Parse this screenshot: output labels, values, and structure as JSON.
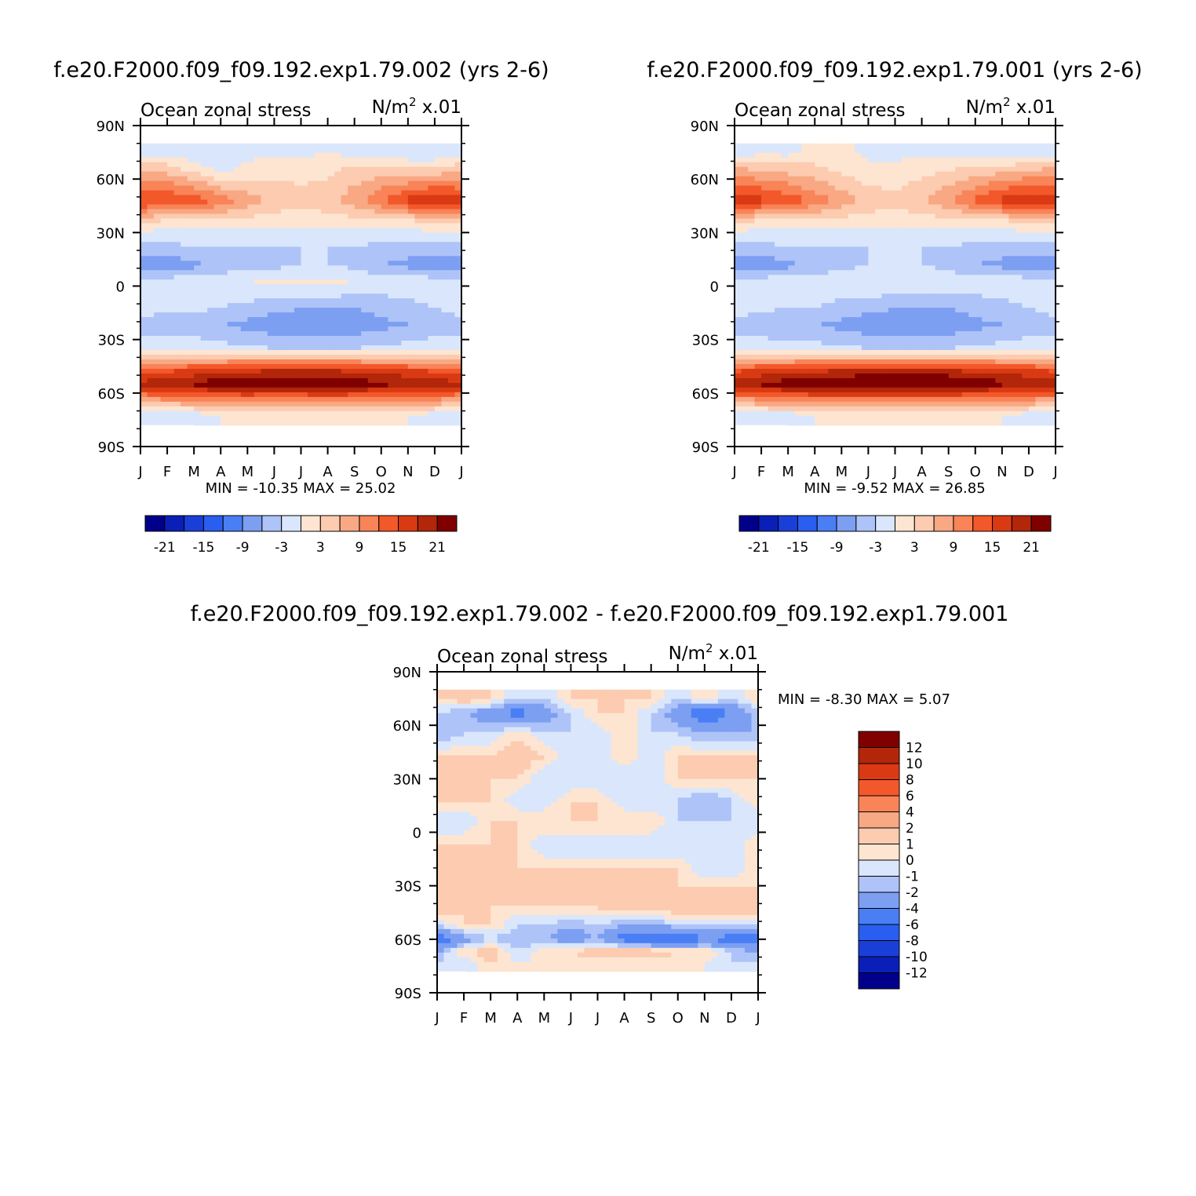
{
  "units_label": "N/m",
  "units_exponent": "2",
  "units_scale": "x.01",
  "variable": "Ocean zonal stress",
  "chart_data": [
    {
      "type": "heatmap",
      "id": "case2",
      "title": "f.e20.F2000.f09_f09.192.exp1.79.002 (yrs 2-6)",
      "subtitle": "Ocean zonal stress",
      "x": [
        "J",
        "F",
        "M",
        "A",
        "M",
        "J",
        "J",
        "A",
        "S",
        "O",
        "N",
        "D",
        "J"
      ],
      "y": [
        "90N",
        "60N",
        "30N",
        "0",
        "30S",
        "60S",
        "90S"
      ],
      "stats": {
        "min_label": "MIN =",
        "min": "-10.35",
        "max_label": "MAX =",
        "max": "25.02"
      },
      "colorbar_labels": [
        "-21",
        "-15",
        "-9",
        "-3",
        "3",
        "9",
        "15",
        "21"
      ],
      "rows": [
        {
          "lat": 75,
          "values": [
            -2,
            -1,
            -3,
            -1,
            -1,
            -1,
            -1,
            0,
            -1,
            -1,
            -3,
            -3,
            -2
          ]
        },
        {
          "lat": 65,
          "values": [
            6,
            5,
            2,
            -1,
            1,
            2,
            2,
            2,
            4,
            4,
            4,
            4,
            6
          ]
        },
        {
          "lat": 48,
          "values": [
            16,
            15,
            14,
            11,
            8,
            5,
            4,
            5,
            8,
            12,
            16,
            18,
            16
          ]
        },
        {
          "lat": 35,
          "values": [
            2,
            1,
            1,
            1,
            1,
            1,
            1,
            1,
            1,
            1,
            1,
            2,
            2
          ]
        },
        {
          "lat": 22,
          "values": [
            -4,
            -4,
            -3,
            -3,
            -3,
            -3,
            -3,
            -3,
            -3,
            -4,
            -4,
            -4,
            -4
          ]
        },
        {
          "lat": 12,
          "values": [
            -9,
            -8,
            -7,
            -5,
            -4,
            -4,
            -3,
            -3,
            -4,
            -6,
            -7,
            -8,
            -9
          ]
        },
        {
          "lat": 2,
          "values": [
            -1,
            -1,
            -1,
            -1,
            0,
            1,
            1,
            1,
            0,
            -1,
            -1,
            -1,
            -1
          ]
        },
        {
          "lat": -12,
          "values": [
            -2,
            -2,
            -2,
            -3,
            -4,
            -5,
            -6,
            -6,
            -6,
            -5,
            -4,
            -3,
            -2
          ]
        },
        {
          "lat": -22,
          "values": [
            -4,
            -5,
            -5,
            -6,
            -7,
            -8,
            -8,
            -8,
            -8,
            -7,
            -6,
            -5,
            -4
          ]
        },
        {
          "lat": -35,
          "values": [
            -1,
            -1,
            -1,
            -2,
            -2,
            -3,
            -3,
            -3,
            -3,
            -2,
            -2,
            -1,
            -1
          ]
        },
        {
          "lat": -48,
          "values": [
            14,
            15,
            16,
            17,
            18,
            19,
            19,
            19,
            18,
            17,
            16,
            15,
            14
          ]
        },
        {
          "lat": -55,
          "values": [
            19,
            21,
            22,
            24,
            24,
            22,
            23,
            24,
            23,
            22,
            21,
            20,
            19
          ]
        },
        {
          "lat": -63,
          "values": [
            9,
            10,
            10,
            11,
            12,
            12,
            12,
            12,
            12,
            11,
            10,
            10,
            9
          ]
        },
        {
          "lat": -72,
          "values": [
            -2,
            -2,
            -1,
            0,
            0,
            0,
            0,
            0,
            0,
            0,
            0,
            -1,
            -2
          ]
        }
      ]
    },
    {
      "type": "heatmap",
      "id": "case1",
      "title": "f.e20.F2000.f09_f09.192.exp1.79.001 (yrs 2-6)",
      "subtitle": "Ocean zonal stress",
      "x": [
        "J",
        "F",
        "M",
        "A",
        "M",
        "J",
        "J",
        "A",
        "S",
        "O",
        "N",
        "D",
        "J"
      ],
      "y": [
        "90N",
        "60N",
        "30N",
        "0",
        "30S",
        "60S",
        "90S"
      ],
      "stats": {
        "min_label": "MIN =",
        "min": "-9.52",
        "max_label": "MAX =",
        "max": "26.85"
      },
      "colorbar_labels": [
        "-21",
        "-15",
        "-9",
        "-3",
        "3",
        "9",
        "15",
        "21"
      ],
      "rows": [
        {
          "lat": 75,
          "values": [
            -2,
            -1,
            -1,
            1,
            1,
            -1,
            -1,
            -1,
            -1,
            -1,
            -3,
            -2,
            -2
          ]
        },
        {
          "lat": 65,
          "values": [
            7,
            6,
            5,
            4,
            2,
            1,
            1,
            2,
            3,
            4,
            5,
            6,
            7
          ]
        },
        {
          "lat": 48,
          "values": [
            17,
            16,
            14,
            11,
            8,
            5,
            4,
            6,
            9,
            13,
            16,
            18,
            17
          ]
        },
        {
          "lat": 35,
          "values": [
            2,
            1,
            1,
            1,
            1,
            1,
            1,
            1,
            1,
            1,
            1,
            2,
            2
          ]
        },
        {
          "lat": 22,
          "values": [
            -4,
            -4,
            -3,
            -3,
            -3,
            -3,
            -3,
            -3,
            -3,
            -4,
            -4,
            -4,
            -4
          ]
        },
        {
          "lat": 12,
          "values": [
            -9,
            -8,
            -7,
            -5,
            -4,
            -3,
            -3,
            -3,
            -4,
            -6,
            -7,
            -8,
            -9
          ]
        },
        {
          "lat": 2,
          "values": [
            -1,
            -1,
            -1,
            -1,
            -1,
            0,
            0,
            0,
            -1,
            -1,
            -1,
            -1,
            -1
          ]
        },
        {
          "lat": -12,
          "values": [
            -2,
            -2,
            -3,
            -3,
            -4,
            -5,
            -6,
            -6,
            -6,
            -5,
            -4,
            -3,
            -2
          ]
        },
        {
          "lat": -22,
          "values": [
            -4,
            -5,
            -6,
            -6,
            -7,
            -8,
            -8,
            -8,
            -8,
            -7,
            -6,
            -5,
            -4
          ]
        },
        {
          "lat": -35,
          "values": [
            -1,
            -1,
            -2,
            -2,
            -2,
            -3,
            -3,
            -3,
            -3,
            -2,
            -2,
            -1,
            -1
          ]
        },
        {
          "lat": -48,
          "values": [
            15,
            16,
            17,
            18,
            19,
            20,
            20,
            20,
            19,
            18,
            17,
            16,
            15
          ]
        },
        {
          "lat": -55,
          "values": [
            21,
            22,
            23,
            24,
            24,
            24,
            25,
            25,
            25,
            24,
            22,
            21,
            21
          ]
        },
        {
          "lat": -63,
          "values": [
            9,
            10,
            11,
            12,
            12,
            12,
            12,
            12,
            12,
            11,
            10,
            10,
            9
          ]
        },
        {
          "lat": -72,
          "values": [
            -2,
            -1,
            -1,
            0,
            0,
            0,
            0,
            0,
            0,
            0,
            0,
            -1,
            -2
          ]
        }
      ]
    },
    {
      "type": "heatmap",
      "id": "diff",
      "title": "f.e20.F2000.f09_f09.192.exp1.79.002 - f.e20.F2000.f09_f09.192.exp1.79.001",
      "subtitle": "Ocean zonal stress",
      "x": [
        "J",
        "F",
        "M",
        "A",
        "M",
        "J",
        "J",
        "A",
        "S",
        "O",
        "N",
        "D",
        "J"
      ],
      "y": [
        "90N",
        "60N",
        "30N",
        "0",
        "30S",
        "60S",
        "90S"
      ],
      "stats": {
        "min_label": "MIN =",
        "min": "-8.30",
        "max_label": "MAX =",
        "max": "5.07"
      },
      "colorbar_labels": [
        "12",
        "10",
        "8",
        "6",
        "4",
        "2",
        "1",
        "0",
        "-1",
        "-2",
        "-4",
        "-6",
        "-8",
        "-10",
        "-12"
      ],
      "rows": [
        {
          "lat": 75,
          "values": [
            1,
            2,
            1,
            -1,
            -1,
            1,
            1,
            1,
            1,
            -1,
            1,
            -1,
            1
          ]
        },
        {
          "lat": 67,
          "values": [
            -1,
            -2,
            -3,
            -5,
            -3,
            -1,
            1,
            1,
            -1,
            -3,
            -6,
            -4,
            -1
          ]
        },
        {
          "lat": 55,
          "values": [
            -2,
            -1,
            -1,
            1,
            -1,
            -1,
            -1,
            1,
            -1,
            -1,
            -2,
            -2,
            -2
          ]
        },
        {
          "lat": 42,
          "values": [
            1,
            1,
            1,
            2,
            1,
            -1,
            -1,
            1,
            -1,
            1,
            1,
            1,
            1
          ]
        },
        {
          "lat": 30,
          "values": [
            1,
            2,
            1,
            1,
            -1,
            -1,
            -1,
            -1,
            -1,
            1,
            1,
            1,
            1
          ]
        },
        {
          "lat": 18,
          "values": [
            1,
            1,
            1,
            -1,
            -1,
            1,
            1,
            -1,
            -1,
            -1,
            -2,
            -1,
            1
          ]
        },
        {
          "lat": 6,
          "values": [
            -1,
            -1,
            1,
            1,
            1,
            1,
            1,
            1,
            1,
            -1,
            -1,
            -1,
            -1
          ]
        },
        {
          "lat": -8,
          "values": [
            1,
            1,
            1,
            1,
            -1,
            -1,
            -1,
            -1,
            -1,
            -1,
            -1,
            -1,
            1
          ]
        },
        {
          "lat": -20,
          "values": [
            1,
            1,
            1,
            1,
            1,
            1,
            1,
            1,
            1,
            1,
            -1,
            -1,
            1
          ]
        },
        {
          "lat": -30,
          "values": [
            1,
            1,
            1,
            1,
            1,
            1,
            1,
            1,
            1,
            1,
            1,
            1,
            1
          ]
        },
        {
          "lat": -42,
          "values": [
            2,
            1,
            1,
            1,
            1,
            1,
            1,
            2,
            2,
            2,
            2,
            2,
            2
          ]
        },
        {
          "lat": -52,
          "values": [
            -1,
            1,
            1,
            -1,
            -1,
            -2,
            -1,
            -2,
            -2,
            -1,
            -1,
            -1,
            -1
          ]
        },
        {
          "lat": -60,
          "values": [
            -6,
            -3,
            -1,
            -2,
            -2,
            -3,
            -2,
            -5,
            -6,
            -7,
            -4,
            -5,
            -6
          ]
        },
        {
          "lat": -67,
          "values": [
            -2,
            1,
            2,
            -1,
            1,
            1,
            2,
            2,
            2,
            1,
            1,
            -1,
            -2
          ]
        },
        {
          "lat": -74,
          "values": [
            -1,
            -1,
            1,
            0,
            0,
            0,
            0,
            0,
            0,
            0,
            0,
            -1,
            -1
          ]
        }
      ]
    }
  ]
}
